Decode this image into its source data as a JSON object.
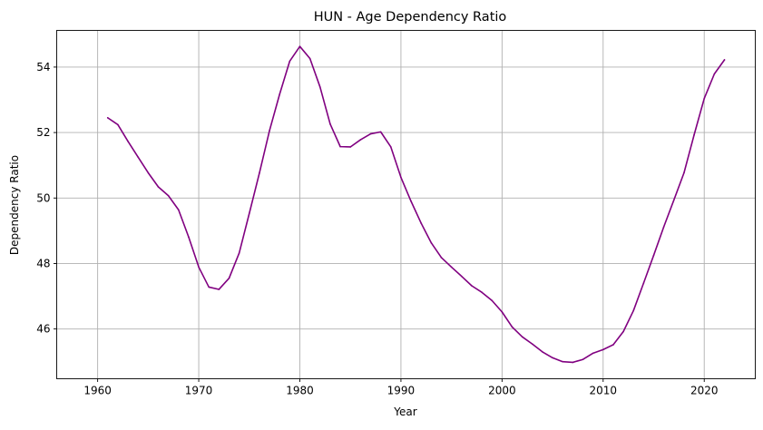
{
  "chart_data": {
    "type": "line",
    "title": "HUN - Age Dependency Ratio",
    "xlabel": "Year",
    "ylabel": "Dependency Ratio",
    "xlim": [
      1955.95,
      2025.05
    ],
    "ylim": [
      44.48,
      55.12
    ],
    "xticks": [
      1960,
      1970,
      1980,
      1990,
      2000,
      2010,
      2020
    ],
    "yticks": [
      46,
      48,
      50,
      52,
      54
    ],
    "grid": true,
    "line_color": "#800080",
    "series": [
      {
        "x": [
          1961,
          1962,
          1963,
          1964,
          1965,
          1966,
          1967,
          1968,
          1969,
          1970,
          1971,
          1972,
          1973,
          1974,
          1975,
          1976,
          1977,
          1978,
          1979,
          1980,
          1981,
          1982,
          1983,
          1984,
          1985,
          1986,
          1987,
          1988,
          1989,
          1990,
          1991,
          1992,
          1993,
          1994,
          1995,
          1996,
          1997,
          1998,
          1999,
          2000,
          2001,
          2002,
          2003,
          2004,
          2005,
          2006,
          2007,
          2008,
          2009,
          2010,
          2011,
          2012,
          2013,
          2014,
          2015,
          2016,
          2017,
          2018,
          2019,
          2020,
          2021,
          2022
        ],
        "values": [
          52.45,
          52.24,
          51.73,
          51.25,
          50.77,
          50.34,
          50.07,
          49.64,
          48.81,
          47.89,
          47.28,
          47.21,
          47.55,
          48.32,
          49.53,
          50.76,
          52.06,
          53.17,
          54.18,
          54.63,
          54.26,
          53.39,
          52.26,
          51.57,
          51.56,
          51.78,
          51.96,
          52.02,
          51.56,
          50.63,
          49.9,
          49.23,
          48.63,
          48.18,
          47.89,
          47.61,
          47.32,
          47.12,
          46.87,
          46.52,
          46.06,
          45.76,
          45.54,
          45.3,
          45.12,
          45.0,
          44.98,
          45.07,
          45.26,
          45.37,
          45.52,
          45.92,
          46.56,
          47.4,
          48.25,
          49.12,
          49.94,
          50.77,
          51.93,
          53.04,
          53.79,
          54.22
        ]
      }
    ]
  }
}
